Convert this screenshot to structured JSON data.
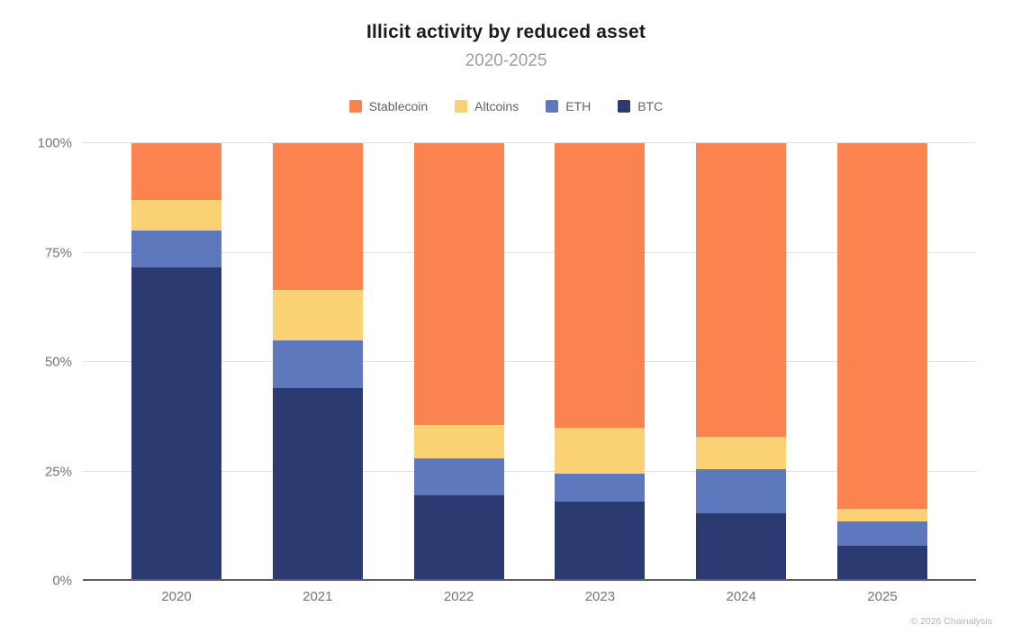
{
  "chart_data": {
    "type": "bar",
    "stacked": true,
    "title": "Illicit activity by reduced asset",
    "subtitle": "2020-2025",
    "categories": [
      "2020",
      "2021",
      "2022",
      "2023",
      "2024",
      "2025"
    ],
    "series": [
      {
        "name": "Stablecoin",
        "color": "#FA8350",
        "values": [
          13,
          33.5,
          64.5,
          65,
          67,
          83.5
        ]
      },
      {
        "name": "Altcoins",
        "color": "#FAD173",
        "values": [
          7,
          11.5,
          7.5,
          10.5,
          7.5,
          3
        ]
      },
      {
        "name": "ETH",
        "color": "#5E78BE",
        "values": [
          8.5,
          11,
          8.5,
          6.5,
          10,
          5.5
        ]
      },
      {
        "name": "BTC",
        "color": "#2B3A71",
        "values": [
          71.5,
          44,
          19.5,
          18,
          15.5,
          8
        ]
      }
    ],
    "xlabel": "",
    "ylabel": "",
    "ylim": [
      0,
      100
    ],
    "yticks": [
      "0%",
      "25%",
      "50%",
      "75%",
      "100%"
    ],
    "ytick_values": [
      0,
      25,
      50,
      75,
      100
    ],
    "legend_position": "top",
    "grid": true,
    "colors": {
      "title_text": "#1c1c1e",
      "subtitle_text": "#9e9e9e",
      "axis_text": "#757575",
      "gridline": "#e2e2e2",
      "axis_line": "#5f5f5f"
    }
  },
  "footer": {
    "credit": "© 2026 Chainalysis"
  }
}
